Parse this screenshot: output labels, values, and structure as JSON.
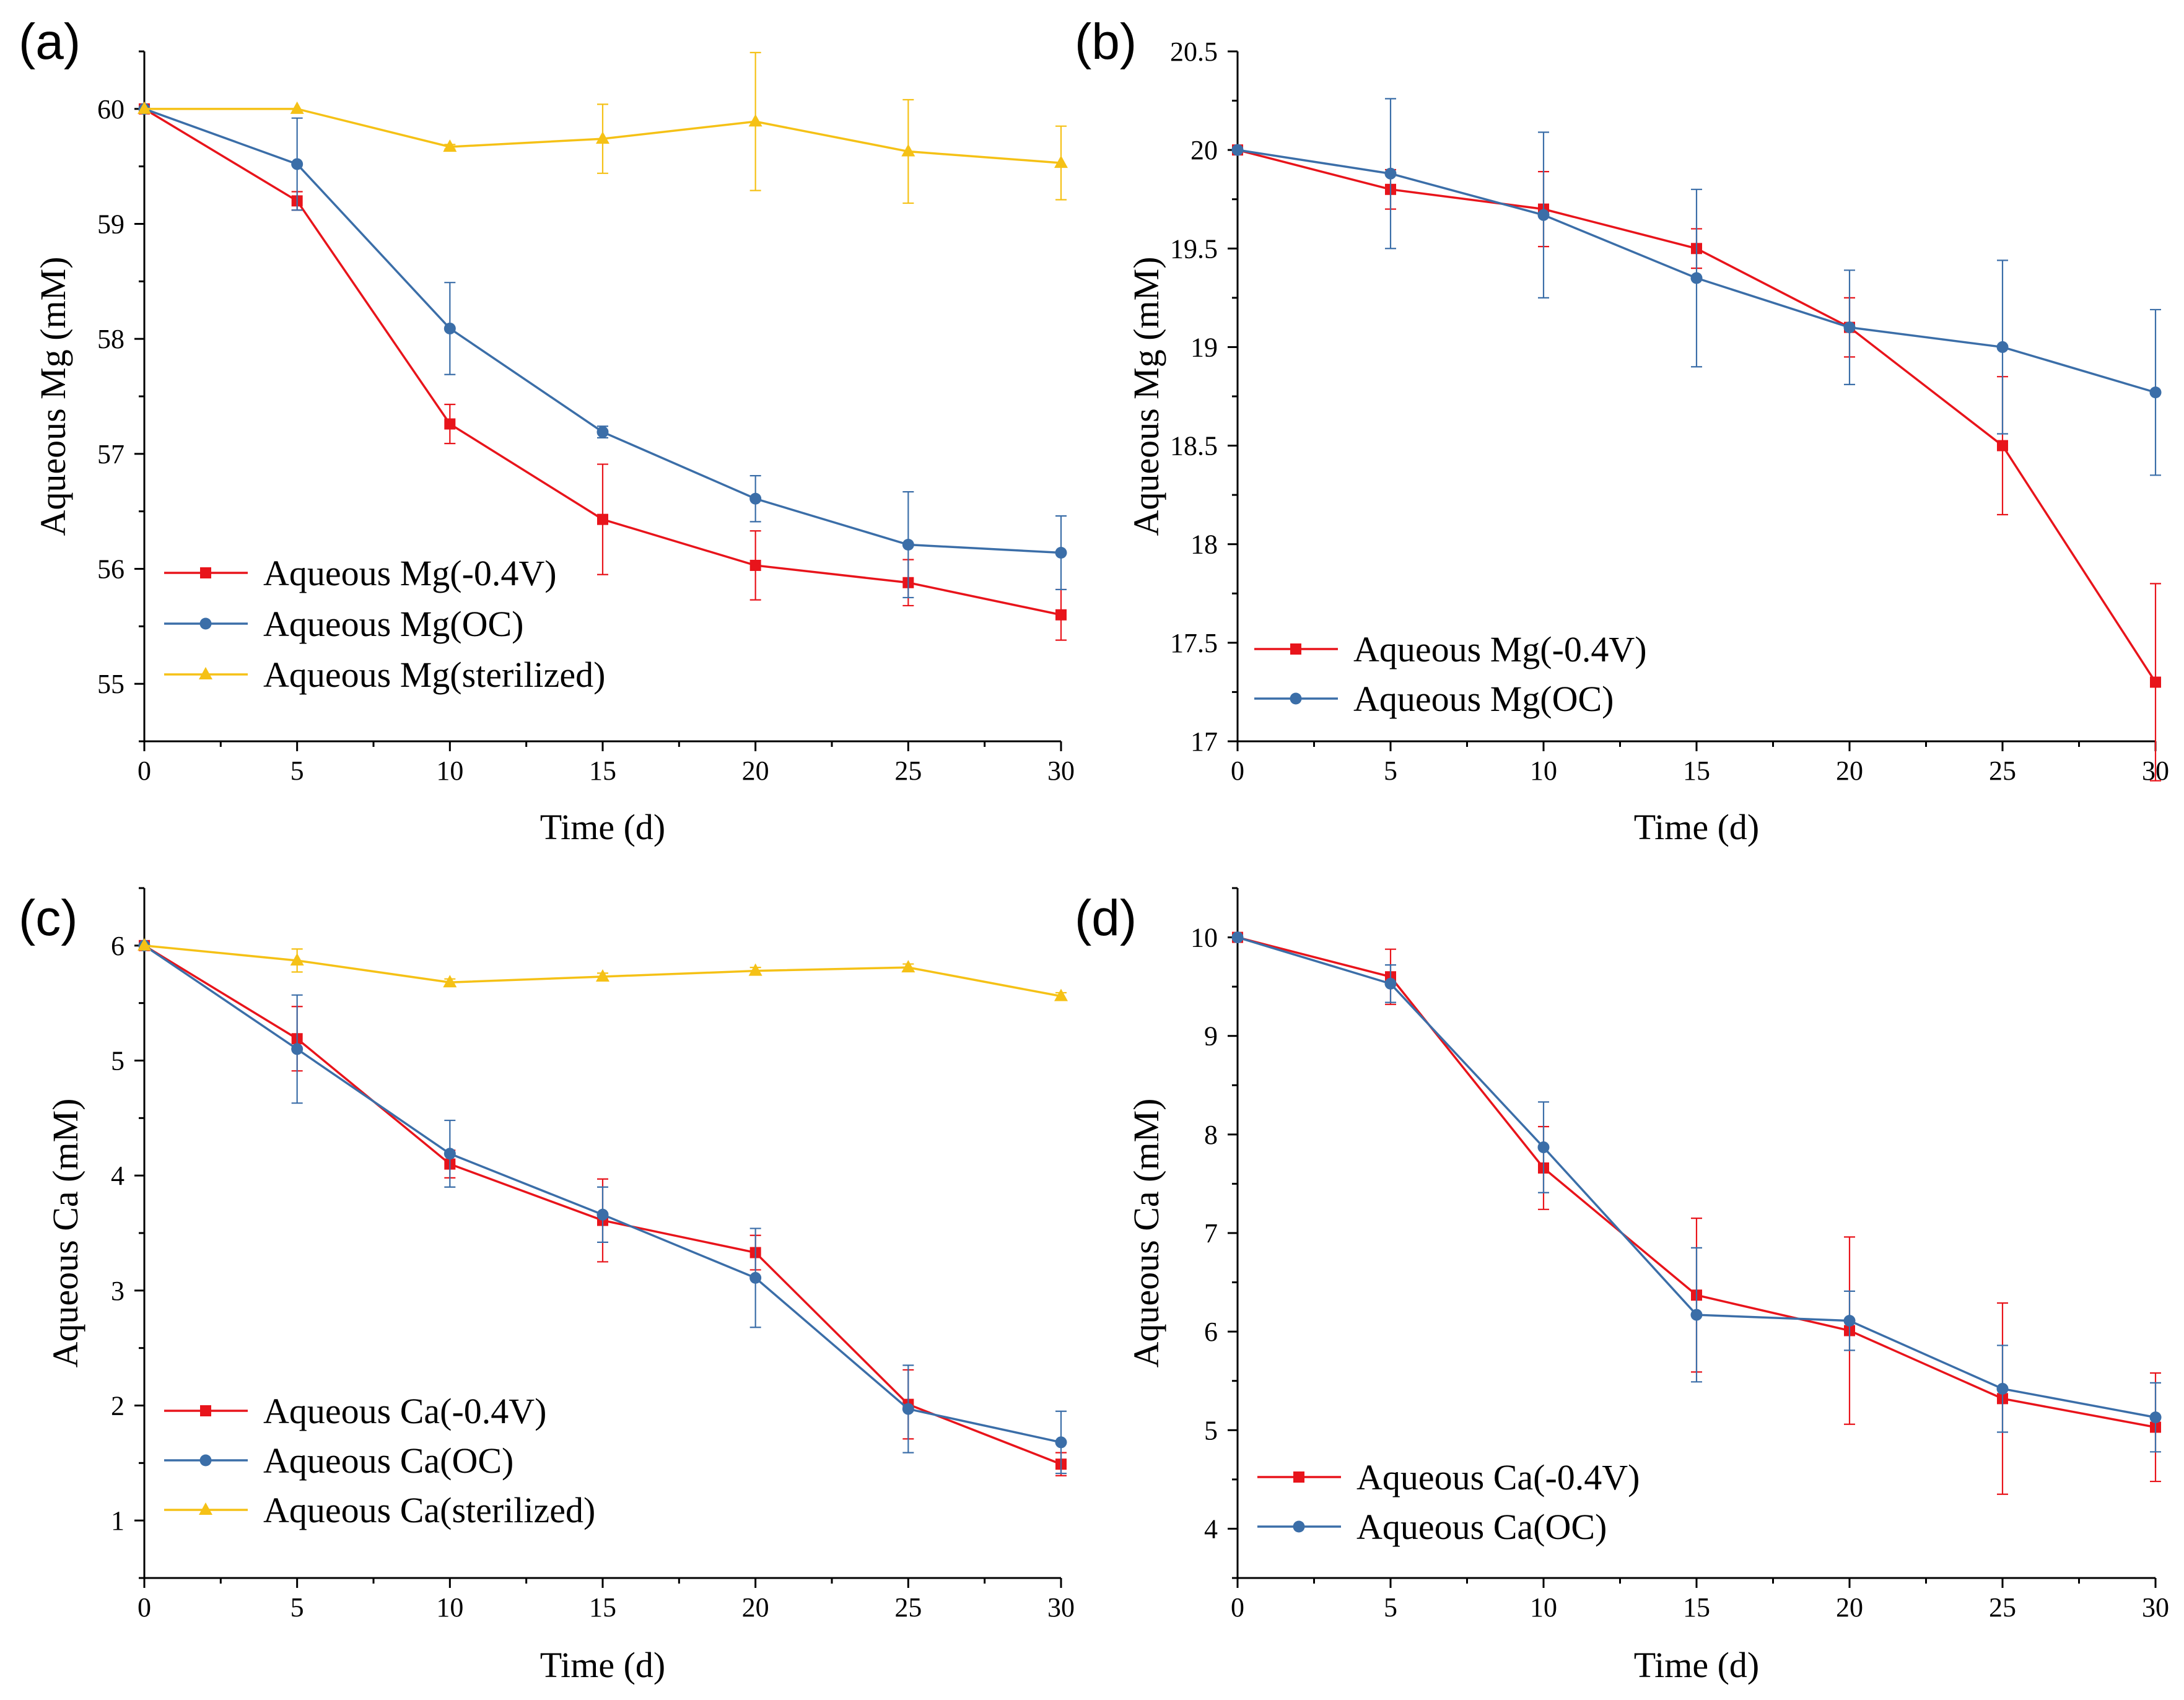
{
  "chart_data": [
    {
      "panel": "(a)",
      "type": "line",
      "xlabel": "Time (d)",
      "ylabel": "Aqueous Mg (mM)",
      "xlim": [
        0,
        30
      ],
      "ylim": [
        54.5,
        60.5
      ],
      "xticks": [
        0,
        5,
        10,
        15,
        20,
        25,
        30
      ],
      "yticks": [
        55,
        56,
        57,
        58,
        59,
        60
      ],
      "ytick_labels": [
        "55",
        "56",
        "57",
        "58",
        "59",
        "60"
      ],
      "legend": "bottom-left",
      "series": [
        {
          "name": "Aqueous Mg(-0.4V)",
          "color": "#e8141b",
          "marker": "square",
          "x": [
            0,
            5,
            10,
            15,
            20,
            25,
            30
          ],
          "y": [
            60.0,
            59.2,
            57.26,
            56.43,
            56.03,
            55.88,
            55.6
          ],
          "err": [
            0.0,
            0.08,
            0.17,
            0.48,
            0.3,
            0.2,
            0.22
          ]
        },
        {
          "name": "Aqueous Mg(OC)",
          "color": "#3b6ea8",
          "marker": "circle",
          "x": [
            0,
            5,
            10,
            15,
            20,
            25,
            30
          ],
          "y": [
            60.0,
            59.52,
            58.09,
            57.19,
            56.61,
            56.21,
            56.14
          ],
          "err": [
            0.0,
            0.4,
            0.4,
            0.05,
            0.2,
            0.46,
            0.32
          ]
        },
        {
          "name": "Aqueous Mg(sterilized)",
          "color": "#f5c116",
          "marker": "triangle",
          "x": [
            0,
            5,
            10,
            15,
            20,
            25,
            30
          ],
          "y": [
            60.0,
            60.0,
            59.67,
            59.74,
            59.89,
            59.63,
            59.53
          ],
          "err": [
            0.0,
            0.0,
            0.02,
            0.3,
            0.6,
            0.45,
            0.32
          ]
        }
      ]
    },
    {
      "panel": "(b)",
      "type": "line",
      "xlabel": "Time (d)",
      "ylabel": "Aqueous Mg (mM)",
      "xlim": [
        0,
        30
      ],
      "ylim": [
        17,
        20.5
      ],
      "xticks": [
        0,
        5,
        10,
        15,
        20,
        25,
        30
      ],
      "yticks": [
        17,
        17.5,
        18,
        18.5,
        19,
        19.5,
        20,
        20.5
      ],
      "ytick_labels": [
        "17",
        "17.5",
        "18",
        "18.5",
        "19",
        "19.5",
        "20",
        "20.5"
      ],
      "legend": "bottom-left",
      "series": [
        {
          "name": "Aqueous Mg(-0.4V)",
          "color": "#e8141b",
          "marker": "square",
          "x": [
            0,
            5,
            10,
            15,
            20,
            25,
            30
          ],
          "y": [
            20.0,
            19.8,
            19.7,
            19.5,
            19.1,
            18.5,
            17.3
          ],
          "err": [
            0.0,
            0.1,
            0.19,
            0.1,
            0.15,
            0.35,
            0.5
          ]
        },
        {
          "name": "Aqueous Mg(OC)",
          "color": "#3b6ea8",
          "marker": "circle",
          "x": [
            0,
            5,
            10,
            15,
            20,
            25,
            30
          ],
          "y": [
            20.0,
            19.88,
            19.67,
            19.35,
            19.1,
            19.0,
            18.77
          ],
          "err": [
            0.0,
            0.38,
            0.42,
            0.45,
            0.29,
            0.44,
            0.42
          ]
        }
      ]
    },
    {
      "panel": "(c)",
      "type": "line",
      "xlabel": "Time (d)",
      "ylabel": "Aqueous Ca (mM)",
      "xlim": [
        0,
        30
      ],
      "ylim": [
        0.5,
        6.5
      ],
      "xticks": [
        0,
        5,
        10,
        15,
        20,
        25,
        30
      ],
      "yticks": [
        1,
        2,
        3,
        4,
        5,
        6
      ],
      "ytick_labels": [
        "1",
        "2",
        "3",
        "4",
        "5",
        "6"
      ],
      "legend": "bottom-left",
      "series": [
        {
          "name": "Aqueous Ca(-0.4V)",
          "color": "#e8141b",
          "marker": "square",
          "x": [
            0,
            5,
            10,
            15,
            20,
            25,
            30
          ],
          "y": [
            6.0,
            5.19,
            4.1,
            3.61,
            3.33,
            2.01,
            1.49
          ],
          "err": [
            0.0,
            0.28,
            0.12,
            0.36,
            0.15,
            0.3,
            0.1
          ]
        },
        {
          "name": "Aqueous Ca(OC)",
          "color": "#3b6ea8",
          "marker": "circle",
          "x": [
            0,
            5,
            10,
            15,
            20,
            25,
            30
          ],
          "y": [
            6.0,
            5.1,
            4.19,
            3.66,
            3.11,
            1.97,
            1.68
          ],
          "err": [
            0.0,
            0.47,
            0.29,
            0.24,
            0.43,
            0.38,
            0.27
          ]
        },
        {
          "name": "Aqueous Ca(sterilized)",
          "color": "#f5c116",
          "marker": "triangle",
          "x": [
            0,
            5,
            10,
            15,
            20,
            25,
            30
          ],
          "y": [
            6.0,
            5.87,
            5.68,
            5.73,
            5.78,
            5.81,
            5.56
          ],
          "err": [
            0.0,
            0.1,
            0.03,
            0.03,
            0.03,
            0.03,
            0.03
          ]
        }
      ]
    },
    {
      "panel": "(d)",
      "type": "line",
      "xlabel": "Time (d)",
      "ylabel": "Aqueous Ca (mM)",
      "xlim": [
        0,
        30
      ],
      "ylim": [
        3.5,
        10.5
      ],
      "xticks": [
        0,
        5,
        10,
        15,
        20,
        25,
        30
      ],
      "yticks": [
        4,
        5,
        6,
        7,
        8,
        9,
        10
      ],
      "ytick_labels": [
        "4",
        "5",
        "6",
        "7",
        "8",
        "9",
        "10"
      ],
      "legend": "bottom-left",
      "series": [
        {
          "name": "Aqueous Ca(-0.4V)",
          "color": "#e8141b",
          "marker": "square",
          "x": [
            0,
            5,
            10,
            15,
            20,
            25,
            30
          ],
          "y": [
            10.0,
            9.6,
            7.66,
            6.37,
            6.01,
            5.32,
            5.03
          ],
          "err": [
            0.0,
            0.28,
            0.42,
            0.78,
            0.95,
            0.97,
            0.55
          ]
        },
        {
          "name": "Aqueous Ca(OC)",
          "color": "#3b6ea8",
          "marker": "circle",
          "x": [
            0,
            5,
            10,
            15,
            20,
            25,
            30
          ],
          "y": [
            10.0,
            9.53,
            7.87,
            6.17,
            6.11,
            5.42,
            5.13
          ],
          "err": [
            0.0,
            0.19,
            0.46,
            0.68,
            0.3,
            0.44,
            0.35
          ]
        }
      ]
    }
  ]
}
